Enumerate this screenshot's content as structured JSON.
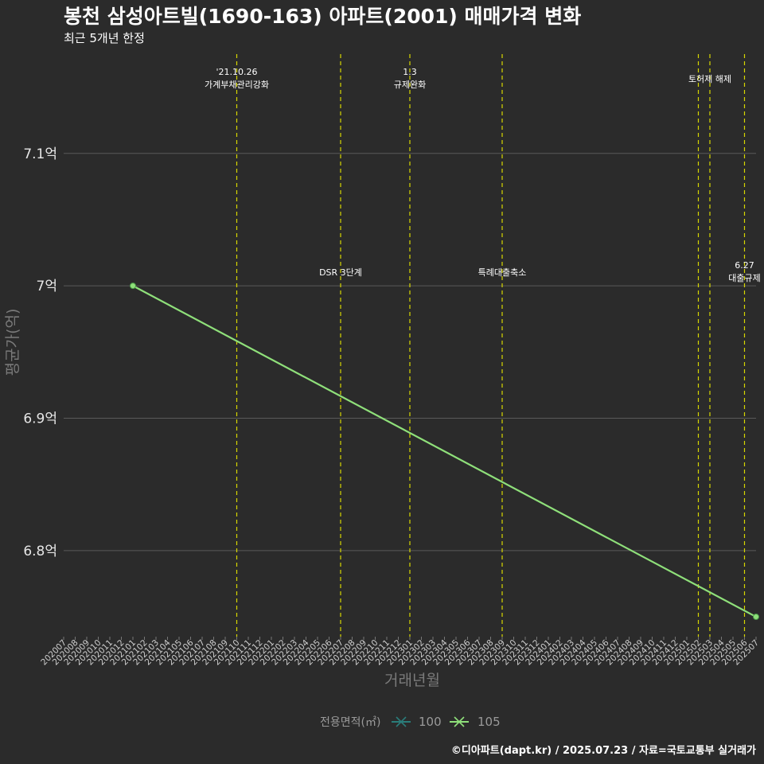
{
  "chart_data": {
    "type": "line",
    "title": "봉천 삼성아트빌(1690-163) 아파트(2001) 매매가격 변화",
    "subtitle": "최근 5개년 한정",
    "xlabel": "거래년월",
    "ylabel": "평균가(억)",
    "ylim": [
      6.735,
      7.175
    ],
    "y_ticks": [
      6.8,
      6.9,
      7.0,
      7.1
    ],
    "y_tick_labels": [
      "6.8억",
      "6.9억",
      "7억",
      "7.1억"
    ],
    "categories": [
      "202007",
      "202008",
      "202009",
      "202010",
      "202011",
      "202012",
      "202101",
      "202102",
      "202103",
      "202104",
      "202105",
      "202106",
      "202107",
      "202108",
      "202109",
      "202110",
      "202111",
      "202112",
      "202201",
      "202202",
      "202203",
      "202204",
      "202205",
      "202206",
      "202207",
      "202208",
      "202209",
      "202210",
      "202211",
      "202212",
      "202301",
      "202302",
      "202303",
      "202304",
      "202305",
      "202306",
      "202307",
      "202308",
      "202309",
      "202310",
      "202311",
      "202312",
      "202401",
      "202402",
      "202403",
      "202404",
      "202405",
      "202406",
      "202407",
      "202408",
      "202409",
      "202410",
      "202411",
      "202412",
      "202501",
      "202502",
      "202503",
      "202504",
      "202505",
      "202506",
      "202507"
    ],
    "series": [
      {
        "name": "100",
        "color": "#2a7d7a",
        "points": []
      },
      {
        "name": "105",
        "color": "#8fe07a",
        "points": [
          {
            "x": "202101",
            "y": 7.0
          },
          {
            "x": "202507",
            "y": 6.75
          }
        ]
      }
    ],
    "events": [
      {
        "at": "202110",
        "lines": [
          "'21.10.26",
          "가계부채관리강화"
        ],
        "row": "top"
      },
      {
        "at": "202207",
        "lines": [
          "DSR 3단계"
        ],
        "row": "middle"
      },
      {
        "at": "202301",
        "lines": [
          "1.3",
          "규제완화"
        ],
        "row": "top"
      },
      {
        "at": "202309",
        "lines": [
          "특례대출축소"
        ],
        "row": "middle"
      },
      {
        "at": "202502",
        "lines": [],
        "row": "none"
      },
      {
        "at": "202503",
        "lines": [
          "토허제 해제"
        ],
        "row": "top-right"
      },
      {
        "at": "202506",
        "lines": [
          "6.27",
          "대출규제"
        ],
        "row": "middle"
      }
    ],
    "legend": {
      "title": "전용면적(㎡)",
      "items": [
        "100",
        "105"
      ],
      "position": "bottom"
    },
    "caption": "©디아파트(dapt.kr) / 2025.07.23 / 자료=국토교통부 실거래가"
  },
  "colors": {
    "background": "#2b2b2b",
    "grid": "#5a5a5a",
    "event_line": "#d8d800",
    "series_100": "#2a7d7a",
    "series_105": "#8fe07a"
  }
}
